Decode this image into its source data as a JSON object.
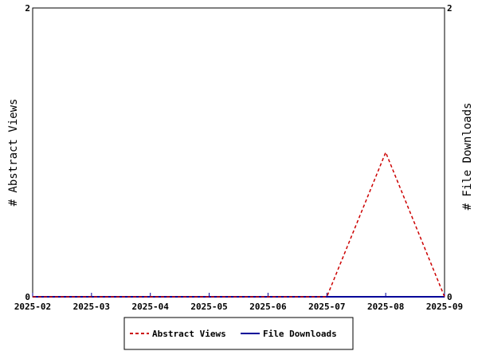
{
  "chart_data": {
    "type": "line",
    "x": [
      "2025-02",
      "2025-03",
      "2025-04",
      "2025-05",
      "2025-06",
      "2025-07",
      "2025-08",
      "2025-09"
    ],
    "series": [
      {
        "name": "Abstract Views",
        "values": [
          0,
          0,
          0,
          0,
          0,
          0,
          1,
          0
        ],
        "color": "#cc0000",
        "style": "dashed",
        "axis": "left"
      },
      {
        "name": "File Downloads",
        "values": [
          0,
          0,
          0,
          0,
          0,
          0,
          0,
          0
        ],
        "color": "#000099",
        "style": "solid",
        "axis": "right"
      }
    ],
    "ylabel_left": "# Abstract Views",
    "ylabel_right": "# File Downloads",
    "ylim_left": [
      0,
      2
    ],
    "ylim_right": [
      0,
      2
    ],
    "yticks_left": [
      "0",
      "2"
    ],
    "yticks_right": [
      "0",
      "2"
    ],
    "grid": false,
    "legend_position": "bottom"
  }
}
